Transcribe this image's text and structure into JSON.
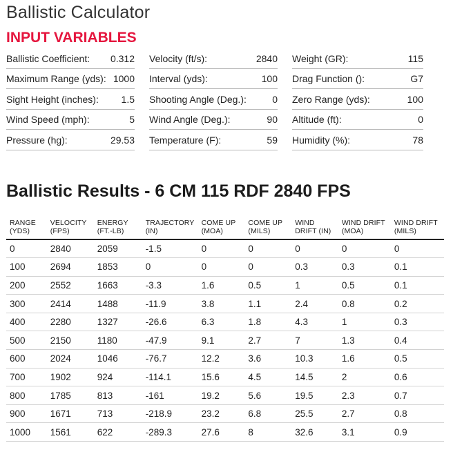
{
  "page": {
    "title": "Ballistic Calculator",
    "inputs_heading": "INPUT VARIABLES",
    "results_heading": "Ballistic Results - 6 CM 115 RDF 2840 FPS"
  },
  "inputs": [
    [
      {
        "label": "Ballistic Coefficient:",
        "value": "0.312"
      },
      {
        "label": "Velocity (ft/s):",
        "value": "2840"
      },
      {
        "label": "Weight (GR):",
        "value": "115"
      }
    ],
    [
      {
        "label": "Maximum Range (yds):",
        "value": "1000"
      },
      {
        "label": "Interval (yds):",
        "value": "100"
      },
      {
        "label": "Drag Function ():",
        "value": "G7"
      }
    ],
    [
      {
        "label": "Sight Height (inches):",
        "value": "1.5"
      },
      {
        "label": "Shooting Angle (Deg.):",
        "value": "0"
      },
      {
        "label": "Zero Range (yds):",
        "value": "100"
      }
    ],
    [
      {
        "label": "Wind Speed (mph):",
        "value": "5"
      },
      {
        "label": "Wind Angle (Deg.):",
        "value": "90"
      },
      {
        "label": "Altitude (ft):",
        "value": "0"
      }
    ],
    [
      {
        "label": "Pressure (hg):",
        "value": "29.53"
      },
      {
        "label": "Temperature (F):",
        "value": "59"
      },
      {
        "label": "Humidity (%):",
        "value": "78"
      }
    ]
  ],
  "results": {
    "columns": [
      [
        "RANGE",
        "(YDS)"
      ],
      [
        "VELOCITY",
        "(FPS)"
      ],
      [
        "ENERGY",
        "(FT.-LB)"
      ],
      [
        "TRAJECTORY",
        "(IN)"
      ],
      [
        "COME UP",
        "(MOA)"
      ],
      [
        "COME UP",
        "(MILS)"
      ],
      [
        "WIND",
        "DRIFT (IN)"
      ],
      [
        "WIND DRIFT",
        "(MOA)"
      ],
      [
        "WIND DRIFT",
        "(MILS)"
      ]
    ],
    "rows": [
      [
        "0",
        "2840",
        "2059",
        "-1.5",
        "0",
        "0",
        "0",
        "0",
        "0"
      ],
      [
        "100",
        "2694",
        "1853",
        "0",
        "0",
        "0",
        "0.3",
        "0.3",
        "0.1"
      ],
      [
        "200",
        "2552",
        "1663",
        "-3.3",
        "1.6",
        "0.5",
        "1",
        "0.5",
        "0.1"
      ],
      [
        "300",
        "2414",
        "1488",
        "-11.9",
        "3.8",
        "1.1",
        "2.4",
        "0.8",
        "0.2"
      ],
      [
        "400",
        "2280",
        "1327",
        "-26.6",
        "6.3",
        "1.8",
        "4.3",
        "1",
        "0.3"
      ],
      [
        "500",
        "2150",
        "1180",
        "-47.9",
        "9.1",
        "2.7",
        "7",
        "1.3",
        "0.4"
      ],
      [
        "600",
        "2024",
        "1046",
        "-76.7",
        "12.2",
        "3.6",
        "10.3",
        "1.6",
        "0.5"
      ],
      [
        "700",
        "1902",
        "924",
        "-114.1",
        "15.6",
        "4.5",
        "14.5",
        "2",
        "0.6"
      ],
      [
        "800",
        "1785",
        "813",
        "-161",
        "19.2",
        "5.6",
        "19.5",
        "2.3",
        "0.7"
      ],
      [
        "900",
        "1671",
        "713",
        "-218.9",
        "23.2",
        "6.8",
        "25.5",
        "2.7",
        "0.8"
      ],
      [
        "1000",
        "1561",
        "622",
        "-289.3",
        "27.6",
        "8",
        "32.6",
        "3.1",
        "0.9"
      ]
    ]
  }
}
